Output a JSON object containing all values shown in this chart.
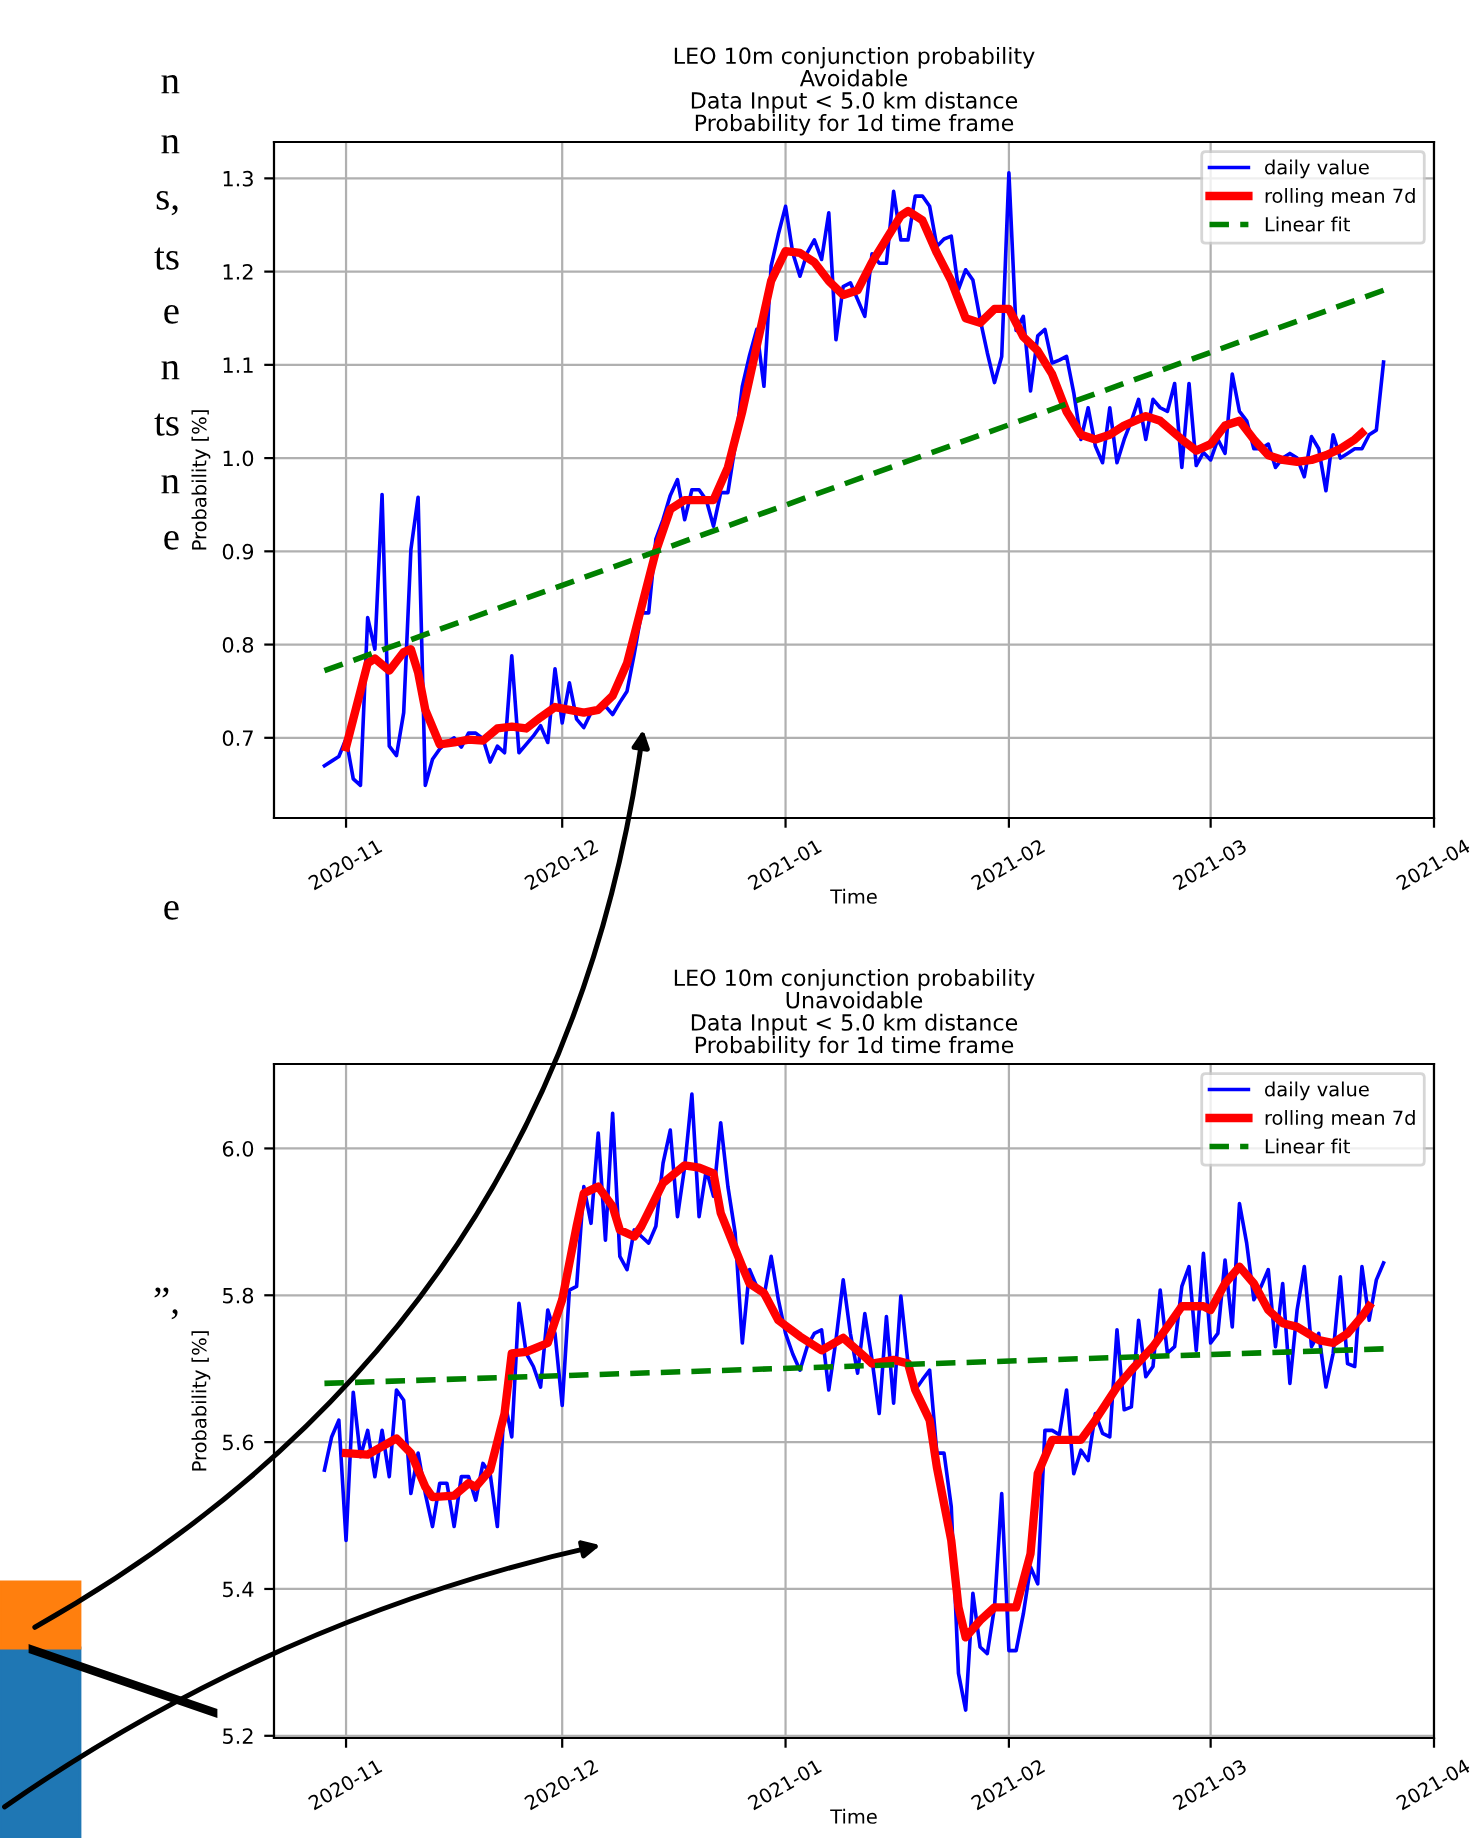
{
  "chart_data": [
    {
      "type": "line",
      "title": "LEO 10m conjunction probability\nAvoidable\nData Input < 5.0 km distance\nProbability for 1d time frame",
      "xlabel": "Time",
      "ylabel": "Probability [%]",
      "xlim": [
        "2020-10-22",
        "2021-04-01"
      ],
      "xticks": [
        "2020-11",
        "2020-12",
        "2021-01",
        "2021-02",
        "2021-03",
        "2021-04"
      ],
      "ylim": [
        0.614,
        1.339
      ],
      "yticks": [
        0.7,
        0.8,
        0.9,
        {
          "value": 1,
          "label": "1.0"
        },
        1.1,
        1.2,
        1.3
      ],
      "grid": true,
      "legend": "top right",
      "series": [
        {
          "name": "daily value",
          "color": "#0000ff",
          "line_style": "solid",
          "x": [
            "2020-10-29",
            "2020-10-30",
            "2020-10-31",
            "2020-11-01",
            "2020-11-02",
            "2020-11-03",
            "2020-11-04",
            "2020-11-05",
            "2020-11-06",
            "2020-11-07",
            "2020-11-08",
            "2020-11-09",
            "2020-11-10",
            "2020-11-11",
            "2020-11-12",
            "2020-11-13",
            "2020-11-14",
            "2020-11-15",
            "2020-11-16",
            "2020-11-17",
            "2020-11-18",
            "2020-11-19",
            "2020-11-20",
            "2020-11-21",
            "2020-11-22",
            "2020-11-23",
            "2020-11-24",
            "2020-11-25",
            "2020-11-26",
            "2020-11-27",
            "2020-11-28",
            "2020-11-29",
            "2020-11-30",
            "2020-12-01",
            "2020-12-02",
            "2020-12-03",
            "2020-12-04",
            "2020-12-05",
            "2020-12-06",
            "2020-12-07",
            "2020-12-08",
            "2020-12-09",
            "2020-12-10",
            "2020-12-11",
            "2020-12-12",
            "2020-12-13",
            "2020-12-14",
            "2020-12-15",
            "2020-12-16",
            "2020-12-17",
            "2020-12-18",
            "2020-12-19",
            "2020-12-20",
            "2020-12-21",
            "2020-12-22",
            "2020-12-23",
            "2020-12-24",
            "2020-12-25",
            "2020-12-26",
            "2020-12-27",
            "2020-12-28",
            "2020-12-29",
            "2020-12-30",
            "2020-12-31",
            "2021-01-01",
            "2021-01-02",
            "2021-01-03",
            "2021-01-04",
            "2021-01-05",
            "2021-01-06",
            "2021-01-07",
            "2021-01-08",
            "2021-01-09",
            "2021-01-10",
            "2021-01-11",
            "2021-01-12",
            "2021-01-13",
            "2021-01-14",
            "2021-01-15",
            "2021-01-16",
            "2021-01-17",
            "2021-01-18",
            "2021-01-19",
            "2021-01-20",
            "2021-01-21",
            "2021-01-22",
            "2021-01-23",
            "2021-01-24",
            "2021-01-25",
            "2021-01-26",
            "2021-01-27",
            "2021-01-28",
            "2021-01-29",
            "2021-01-30",
            "2021-01-31",
            "2021-02-01",
            "2021-02-02",
            "2021-02-03",
            "2021-02-04",
            "2021-02-05",
            "2021-02-06",
            "2021-02-07",
            "2021-02-08",
            "2021-02-09",
            "2021-02-10",
            "2021-02-11",
            "2021-02-12",
            "2021-02-13",
            "2021-02-14",
            "2021-02-15",
            "2021-02-16",
            "2021-02-17",
            "2021-02-18",
            "2021-02-19",
            "2021-02-20",
            "2021-02-21",
            "2021-02-22",
            "2021-02-23",
            "2021-02-24",
            "2021-02-25",
            "2021-02-26",
            "2021-02-27",
            "2021-02-28",
            "2021-03-01",
            "2021-03-02",
            "2021-03-03",
            "2021-03-04",
            "2021-03-05",
            "2021-03-06",
            "2021-03-07",
            "2021-03-08",
            "2021-03-09",
            "2021-03-10",
            "2021-03-11",
            "2021-03-12",
            "2021-03-13",
            "2021-03-14",
            "2021-03-15",
            "2021-03-16",
            "2021-03-17",
            "2021-03-18",
            "2021-03-19",
            "2021-03-20",
            "2021-03-21",
            "2021-03-22",
            "2021-03-23",
            "2021-03-24",
            "2021-03-25"
          ],
          "values": [
            0.67,
            0.675,
            0.68,
            0.699,
            0.656,
            0.649,
            0.829,
            0.795,
            0.961,
            0.691,
            0.681,
            0.727,
            0.902,
            0.958,
            0.649,
            0.677,
            0.688,
            0.695,
            0.7,
            0.69,
            0.705,
            0.705,
            0.699,
            0.674,
            0.691,
            0.684,
            0.788,
            0.684,
            0.693,
            0.702,
            0.713,
            0.695,
            0.774,
            0.716,
            0.759,
            0.72,
            0.711,
            0.727,
            0.728,
            0.734,
            0.725,
            0.738,
            0.75,
            0.79,
            0.834,
            0.834,
            0.913,
            0.934,
            0.96,
            0.977,
            0.934,
            0.966,
            0.966,
            0.955,
            0.927,
            0.963,
            0.963,
            1.013,
            1.077,
            1.11,
            1.138,
            1.077,
            1.206,
            1.24,
            1.27,
            1.22,
            1.195,
            1.22,
            1.234,
            1.213,
            1.263,
            1.127,
            1.184,
            1.188,
            1.17,
            1.152,
            1.219,
            1.209,
            1.209,
            1.286,
            1.234,
            1.234,
            1.281,
            1.281,
            1.27,
            1.227,
            1.235,
            1.238,
            1.181,
            1.202,
            1.191,
            1.149,
            1.113,
            1.081,
            1.109,
            1.306,
            1.137,
            1.152,
            1.072,
            1.131,
            1.138,
            1.102,
            1.105,
            1.109,
            1.07,
            1.02,
            1.054,
            1.013,
            0.995,
            1.054,
            0.995,
            1.02,
            1.04,
            1.063,
            1.02,
            1.063,
            1.054,
            1.05,
            1.08,
            0.99,
            1.08,
            0.992,
            1.006,
            0.998,
            1.02,
            1.005,
            1.09,
            1.05,
            1.04,
            1.01,
            1.01,
            1.015,
            0.99,
            1.0,
            1.005,
            1.0,
            0.98,
            1.023,
            1.01,
            0.965,
            1.025,
            1.0,
            1.005,
            1.01,
            1.01,
            1.025,
            1.03,
            1.103
          ]
        },
        {
          "name": "rolling mean 7d",
          "color": "#ff0000",
          "line_style": "solid",
          "x": [
            "2020-11-01",
            "2020-11-02",
            "2020-11-04",
            "2020-11-05",
            "2020-11-07",
            "2020-11-09",
            "2020-11-10",
            "2020-11-11",
            "2020-11-12",
            "2020-11-14",
            "2020-11-16",
            "2020-11-18",
            "2020-11-20",
            "2020-11-22",
            "2020-11-24",
            "2020-11-26",
            "2020-11-28",
            "2020-11-30",
            "2020-12-02",
            "2020-12-04",
            "2020-12-06",
            "2020-12-08",
            "2020-12-10",
            "2020-12-12",
            "2020-12-14",
            "2020-12-16",
            "2020-12-18",
            "2020-12-20",
            "2020-12-22",
            "2020-12-24",
            "2020-12-26",
            "2020-12-28",
            "2020-12-30",
            "2021-01-01",
            "2021-01-03",
            "2021-01-05",
            "2021-01-07",
            "2021-01-09",
            "2021-01-11",
            "2021-01-13",
            "2021-01-15",
            "2021-01-17",
            "2021-01-18",
            "2021-01-20",
            "2021-01-22",
            "2021-01-24",
            "2021-01-26",
            "2021-01-28",
            "2021-01-30",
            "2021-02-01",
            "2021-02-03",
            "2021-02-05",
            "2021-02-07",
            "2021-02-09",
            "2021-02-11",
            "2021-02-13",
            "2021-02-15",
            "2021-02-17",
            "2021-02-20",
            "2021-02-22",
            "2021-02-25",
            "2021-02-27",
            "2021-03-01",
            "2021-03-03",
            "2021-03-05",
            "2021-03-07",
            "2021-03-09",
            "2021-03-11",
            "2021-03-13",
            "2021-03-15",
            "2021-03-17",
            "2021-03-19",
            "2021-03-21",
            "2021-03-22"
          ],
          "values": [
            0.69,
            0.72,
            0.78,
            0.785,
            0.772,
            0.792,
            0.795,
            0.77,
            0.73,
            0.693,
            0.695,
            0.698,
            0.697,
            0.71,
            0.712,
            0.71,
            0.722,
            0.733,
            0.73,
            0.727,
            0.73,
            0.745,
            0.78,
            0.84,
            0.9,
            0.945,
            0.955,
            0.955,
            0.955,
            0.99,
            1.05,
            1.12,
            1.19,
            1.222,
            1.22,
            1.21,
            1.19,
            1.175,
            1.18,
            1.21,
            1.235,
            1.26,
            1.265,
            1.255,
            1.22,
            1.19,
            1.15,
            1.145,
            1.16,
            1.16,
            1.13,
            1.115,
            1.09,
            1.05,
            1.025,
            1.02,
            1.025,
            1.035,
            1.045,
            1.04,
            1.02,
            1.008,
            1.015,
            1.035,
            1.04,
            1.02,
            1.003,
            0.998,
            0.996,
            0.998,
            1.003,
            1.01,
            1.02,
            1.027
          ]
        },
        {
          "name": "Linear fit",
          "color": "#008000",
          "line_style": "dashed",
          "x": [
            "2020-10-29",
            "2021-03-25"
          ],
          "values": [
            0.772,
            1.18
          ]
        }
      ]
    },
    {
      "type": "line",
      "title": "LEO 10m conjunction probability\nUnavoidable\nData Input < 5.0 km distance\nProbability for 1d time frame",
      "xlabel": "Time",
      "ylabel": "Probability [%]",
      "xlim": [
        "2020-10-22",
        "2021-04-01"
      ],
      "xticks": [
        "2020-11",
        "2020-12",
        "2021-01",
        "2021-02",
        "2021-03",
        "2021-04"
      ],
      "ylim": [
        5.197,
        6.115
      ],
      "yticks": [
        5.2,
        5.4,
        5.6,
        5.8,
        {
          "value": 6,
          "label": "6.0"
        }
      ],
      "grid": true,
      "legend": "top right",
      "series": [
        {
          "name": "daily value",
          "color": "#0000ff",
          "line_style": "solid",
          "x": [
            "2020-10-29",
            "2020-10-30",
            "2020-10-31",
            "2020-11-01",
            "2020-11-02",
            "2020-11-03",
            "2020-11-04",
            "2020-11-05",
            "2020-11-06",
            "2020-11-07",
            "2020-11-08",
            "2020-11-09",
            "2020-11-10",
            "2020-11-11",
            "2020-11-12",
            "2020-11-13",
            "2020-11-14",
            "2020-11-15",
            "2020-11-16",
            "2020-11-17",
            "2020-11-18",
            "2020-11-19",
            "2020-11-20",
            "2020-11-21",
            "2020-11-22",
            "2020-11-23",
            "2020-11-24",
            "2020-11-25",
            "2020-11-26",
            "2020-11-27",
            "2020-11-28",
            "2020-11-29",
            "2020-11-30",
            "2020-12-01",
            "2020-12-02",
            "2020-12-03",
            "2020-12-04",
            "2020-12-05",
            "2020-12-06",
            "2020-12-07",
            "2020-12-08",
            "2020-12-09",
            "2020-12-10",
            "2020-12-11",
            "2020-12-12",
            "2020-12-13",
            "2020-12-14",
            "2020-12-15",
            "2020-12-16",
            "2020-12-17",
            "2020-12-18",
            "2020-12-19",
            "2020-12-20",
            "2020-12-21",
            "2020-12-22",
            "2020-12-23",
            "2020-12-24",
            "2020-12-25",
            "2020-12-26",
            "2020-12-27",
            "2020-12-28",
            "2020-12-29",
            "2020-12-30",
            "2020-12-31",
            "2021-01-01",
            "2021-01-02",
            "2021-01-03",
            "2021-01-04",
            "2021-01-05",
            "2021-01-06",
            "2021-01-07",
            "2021-01-08",
            "2021-01-09",
            "2021-01-10",
            "2021-01-11",
            "2021-01-12",
            "2021-01-13",
            "2021-01-14",
            "2021-01-15",
            "2021-01-16",
            "2021-01-17",
            "2021-01-18",
            "2021-01-19",
            "2021-01-20",
            "2021-01-21",
            "2021-01-22",
            "2021-01-23",
            "2021-01-24",
            "2021-01-25",
            "2021-01-26",
            "2021-01-27",
            "2021-01-28",
            "2021-01-29",
            "2021-01-30",
            "2021-01-31",
            "2021-02-01",
            "2021-02-02",
            "2021-02-03",
            "2021-02-04",
            "2021-02-05",
            "2021-02-06",
            "2021-02-07",
            "2021-02-08",
            "2021-02-09",
            "2021-02-10",
            "2021-02-11",
            "2021-02-12",
            "2021-02-13",
            "2021-02-14",
            "2021-02-15",
            "2021-02-16",
            "2021-02-17",
            "2021-02-18",
            "2021-02-19",
            "2021-02-20",
            "2021-02-21",
            "2021-02-22",
            "2021-02-23",
            "2021-02-24",
            "2021-02-25",
            "2021-02-26",
            "2021-02-27",
            "2021-02-28",
            "2021-03-01",
            "2021-03-02",
            "2021-03-03",
            "2021-03-04",
            "2021-03-05",
            "2021-03-06",
            "2021-03-07",
            "2021-03-08",
            "2021-03-09",
            "2021-03-10",
            "2021-03-11",
            "2021-03-12",
            "2021-03-13",
            "2021-03-14",
            "2021-03-15",
            "2021-03-16",
            "2021-03-17",
            "2021-03-18",
            "2021-03-19",
            "2021-03-20",
            "2021-03-21",
            "2021-03-22",
            "2021-03-23",
            "2021-03-24",
            "2021-03-25"
          ],
          "values": [
            5.562,
            5.607,
            5.63,
            5.466,
            5.668,
            5.58,
            5.616,
            5.553,
            5.616,
            5.553,
            5.671,
            5.657,
            5.53,
            5.585,
            5.53,
            5.485,
            5.544,
            5.544,
            5.485,
            5.553,
            5.553,
            5.521,
            5.571,
            5.557,
            5.485,
            5.657,
            5.607,
            5.789,
            5.721,
            5.703,
            5.675,
            5.78,
            5.748,
            5.65,
            5.807,
            5.812,
            5.948,
            5.898,
            6.021,
            5.875,
            6.048,
            5.853,
            5.835,
            5.889,
            5.88,
            5.871,
            5.894,
            5.98,
            6.025,
            5.907,
            5.975,
            6.074,
            5.907,
            5.971,
            5.935,
            6.035,
            5.948,
            5.885,
            5.735,
            5.835,
            5.812,
            5.798,
            5.853,
            5.794,
            5.748,
            5.72,
            5.698,
            5.73,
            5.748,
            5.753,
            5.671,
            5.739,
            5.821,
            5.748,
            5.694,
            5.775,
            5.712,
            5.639,
            5.771,
            5.653,
            5.799,
            5.707,
            5.671,
            5.685,
            5.698,
            5.585,
            5.585,
            5.512,
            5.285,
            5.235,
            5.394,
            5.321,
            5.312,
            5.375,
            5.53,
            5.316,
            5.316,
            5.366,
            5.43,
            5.407,
            5.616,
            5.616,
            5.61,
            5.671,
            5.557,
            5.589,
            5.575,
            5.639,
            5.612,
            5.607,
            5.753,
            5.644,
            5.648,
            5.766,
            5.689,
            5.703,
            5.807,
            5.721,
            5.73,
            5.812,
            5.839,
            5.725,
            5.857,
            5.735,
            5.748,
            5.848,
            5.757,
            5.925,
            5.871,
            5.794,
            5.812,
            5.835,
            5.73,
            5.816,
            5.68,
            5.78,
            5.839,
            5.73,
            5.748,
            5.675,
            5.721,
            5.825,
            5.707,
            5.703,
            5.839,
            5.766,
            5.821,
            5.844
          ]
        },
        {
          "name": "rolling mean 7d",
          "color": "#ff0000",
          "line_style": "solid",
          "x": [
            "2020-11-01",
            "2020-11-04",
            "2020-11-08",
            "2020-11-10",
            "2020-11-12",
            "2020-11-13",
            "2020-11-16",
            "2020-11-18",
            "2020-11-19",
            "2020-11-21",
            "2020-11-23",
            "2020-11-24",
            "2020-11-26",
            "2020-11-29",
            "2020-12-01",
            "2020-12-03",
            "2020-12-04",
            "2020-12-06",
            "2020-12-08",
            "2020-12-09",
            "2020-12-11",
            "2020-12-12",
            "2020-12-15",
            "2020-12-18",
            "2020-12-20",
            "2020-12-22",
            "2020-12-23",
            "2020-12-26",
            "2020-12-27",
            "2020-12-29",
            "2020-12-31",
            "2021-01-03",
            "2021-01-06",
            "2021-01-09",
            "2021-01-12",
            "2021-01-13",
            "2021-01-16",
            "2021-01-18",
            "2021-01-19",
            "2021-01-21",
            "2021-01-22",
            "2021-01-24",
            "2021-01-25",
            "2021-01-26",
            "2021-01-28",
            "2021-01-30",
            "2021-02-02",
            "2021-02-04",
            "2021-02-05",
            "2021-02-07",
            "2021-02-09",
            "2021-02-11",
            "2021-02-13",
            "2021-02-16",
            "2021-02-18",
            "2021-02-21",
            "2021-02-23",
            "2021-02-25",
            "2021-02-28",
            "2021-03-01",
            "2021-03-03",
            "2021-03-05",
            "2021-03-07",
            "2021-03-09",
            "2021-03-11",
            "2021-03-13",
            "2021-03-16",
            "2021-03-18",
            "2021-03-20",
            "2021-03-22",
            "2021-03-23"
          ],
          "values": [
            5.585,
            5.583,
            5.605,
            5.585,
            5.539,
            5.525,
            5.527,
            5.544,
            5.539,
            5.562,
            5.639,
            5.721,
            5.723,
            5.735,
            5.794,
            5.894,
            5.939,
            5.948,
            5.921,
            5.889,
            5.88,
            5.894,
            5.953,
            5.977,
            5.974,
            5.966,
            5.912,
            5.839,
            5.816,
            5.803,
            5.766,
            5.744,
            5.725,
            5.742,
            5.716,
            5.707,
            5.712,
            5.707,
            5.671,
            5.63,
            5.566,
            5.466,
            5.375,
            5.334,
            5.357,
            5.375,
            5.375,
            5.448,
            5.557,
            5.603,
            5.603,
            5.603,
            5.63,
            5.675,
            5.698,
            5.73,
            5.757,
            5.785,
            5.785,
            5.78,
            5.816,
            5.839,
            5.816,
            5.78,
            5.762,
            5.757,
            5.739,
            5.735,
            5.748,
            5.771,
            5.785
          ]
        },
        {
          "name": "Linear fit",
          "color": "#008000",
          "line_style": "dashed",
          "x": [
            "2020-10-29",
            "2021-03-25"
          ],
          "values": [
            5.68,
            5.727
          ]
        }
      ]
    },
    {
      "type": "other",
      "annotations": [
        "n",
        "n",
        "s,",
        "ts",
        "e",
        "n",
        "ts",
        "n",
        "e",
        "e",
        "”,"
      ]
    }
  ]
}
